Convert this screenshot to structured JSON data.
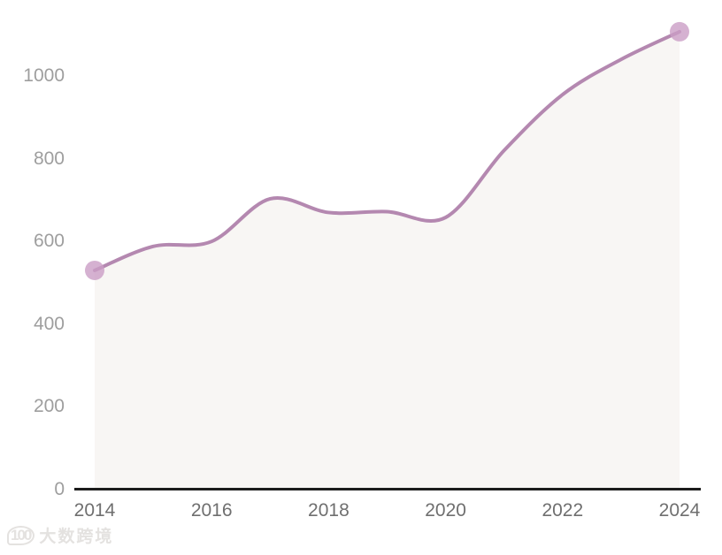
{
  "chart_data": {
    "type": "area",
    "title": "",
    "xlabel": "",
    "ylabel": "",
    "smooth": true,
    "grid": false,
    "legend": false,
    "x": [
      2014,
      2015,
      2016,
      2017,
      2018,
      2019,
      2020,
      2021,
      2022,
      2023,
      2024
    ],
    "series": [
      {
        "name": "value",
        "values": [
          530,
          588,
          600,
          703,
          670,
          672,
          658,
          820,
          955,
          1040,
          1107
        ]
      }
    ],
    "markers": "first and last data point only",
    "x_tick_labels": [
      "2014",
      "2016",
      "2018",
      "2020",
      "2022",
      "2024"
    ],
    "y_tick_labels": [
      "0",
      "200",
      "400",
      "600",
      "800",
      "1000"
    ],
    "ylim": [
      0,
      1180
    ]
  },
  "colors": {
    "line": "#b488b0",
    "marker": "#cb9dc6",
    "area_fill": "#f8f6f4",
    "axis_line": "#1c1c1c",
    "y_tick_text": "#9e9e9e",
    "x_tick_text": "#6f6f6f",
    "watermark": "#e4e2e0"
  },
  "watermark": {
    "logo": "100",
    "text": "大数跨境"
  }
}
